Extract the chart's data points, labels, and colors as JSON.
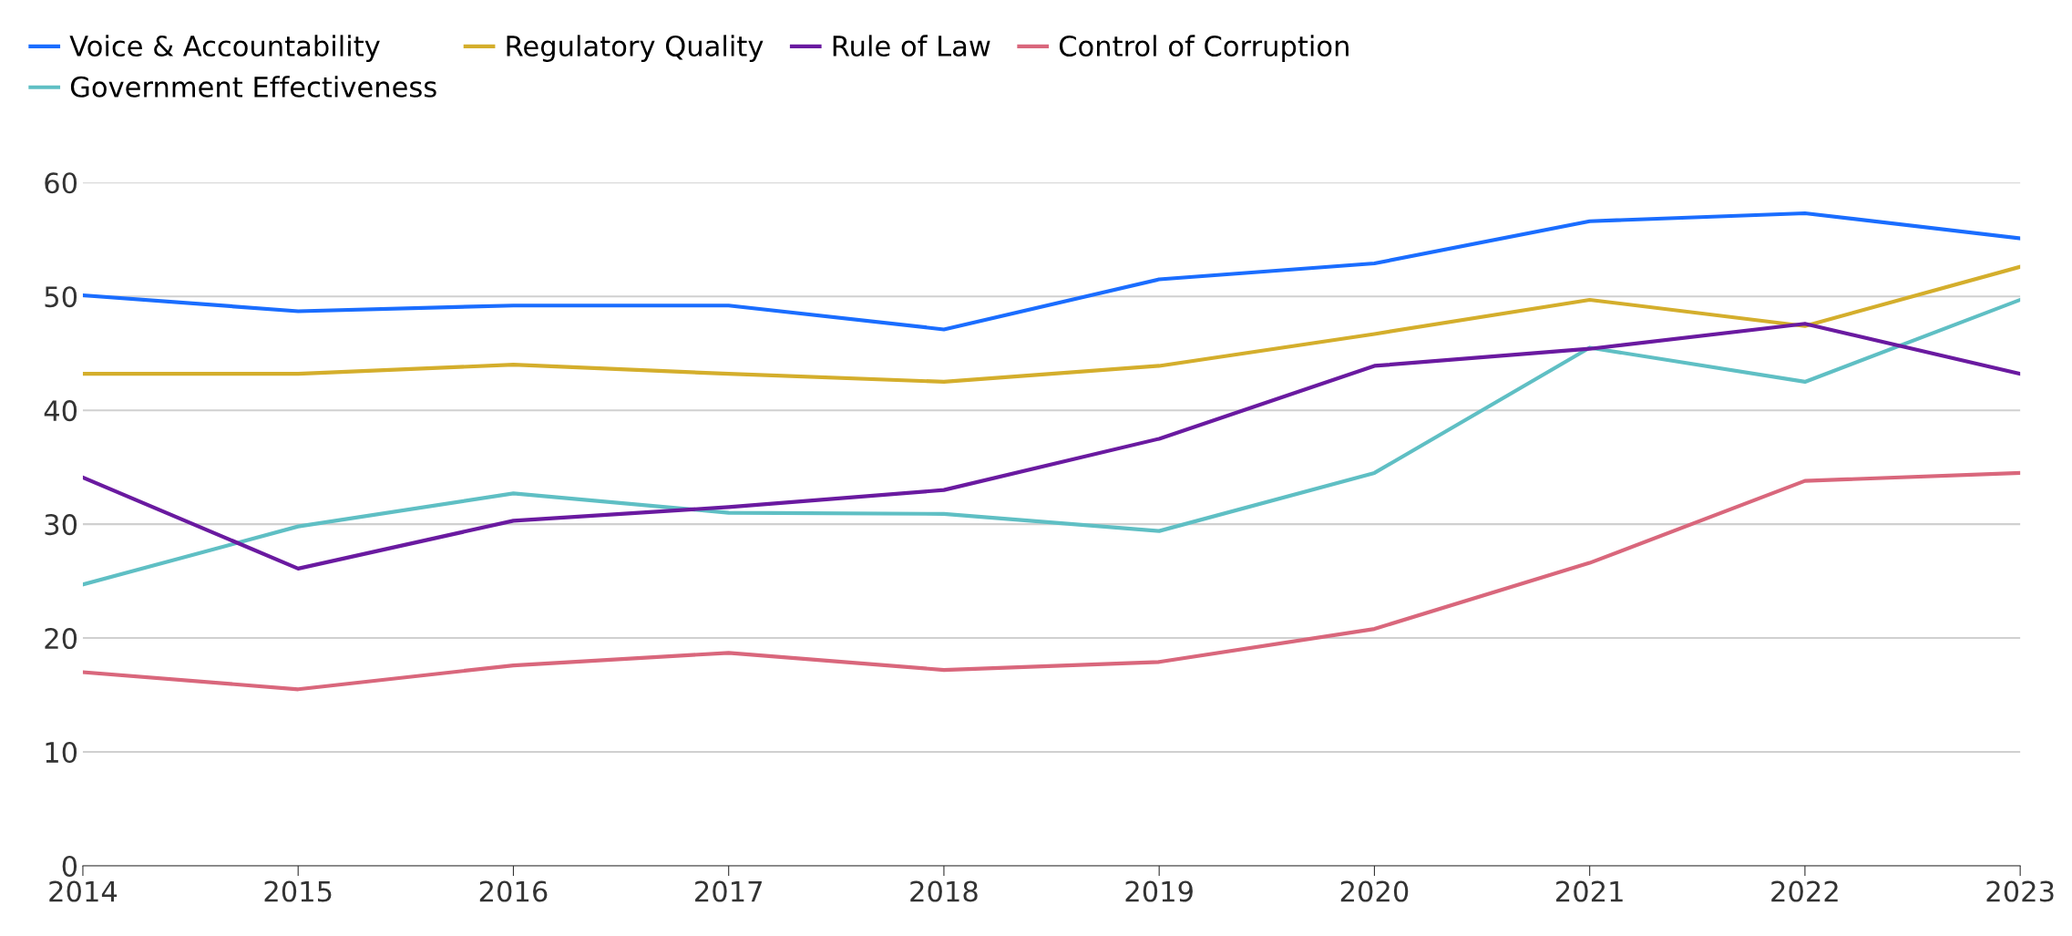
{
  "chart_data": {
    "type": "line",
    "categories": [
      "2014",
      "2015",
      "2016",
      "2017",
      "2018",
      "2019",
      "2020",
      "2021",
      "2022",
      "2023"
    ],
    "series": [
      {
        "name": "Voice & Accountability",
        "color": "#1a6dff",
        "values": [
          50.1,
          48.7,
          49.2,
          49.2,
          47.1,
          51.5,
          52.9,
          56.6,
          57.3,
          55.1
        ]
      },
      {
        "name": "Government Effectiveness",
        "color": "#5fbfc4",
        "values": [
          24.7,
          29.8,
          32.7,
          31.0,
          30.9,
          29.4,
          34.5,
          45.5,
          42.5,
          49.7
        ]
      },
      {
        "name": "Regulatory Quality",
        "color": "#d4ae2c",
        "values": [
          43.2,
          43.2,
          44.0,
          43.2,
          42.5,
          43.9,
          46.7,
          49.7,
          47.4,
          52.6
        ]
      },
      {
        "name": "Rule of Law",
        "color": "#6a1aa0",
        "values": [
          34.1,
          26.1,
          30.3,
          31.5,
          33.0,
          37.5,
          43.9,
          45.4,
          47.6,
          43.2
        ]
      },
      {
        "name": "Control of Corruption",
        "color": "#d9677c",
        "values": [
          17.0,
          15.5,
          17.6,
          18.7,
          17.2,
          17.9,
          20.8,
          26.6,
          33.8,
          34.5
        ]
      }
    ],
    "ylim": [
      0,
      60
    ],
    "yticks": [
      0,
      10,
      20,
      30,
      40,
      50,
      60
    ],
    "grid": "y",
    "legend": "top left",
    "marker": "none",
    "line_style": "solid"
  }
}
